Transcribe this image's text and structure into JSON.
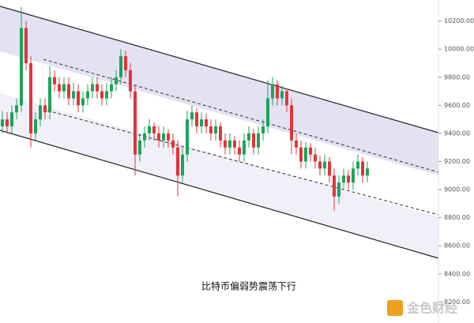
{
  "chart_data": {
    "type": "candlestick",
    "annotation": "比特币偏弱势震荡下行",
    "watermark": "金色财经",
    "up_color": "#1ea35a",
    "down_color": "#e0353b",
    "ylim": [
      8050,
      10350
    ],
    "yticks": [
      {
        "value": 10200,
        "label": "10200.00"
      },
      {
        "value": 10000,
        "label": "10000.00"
      },
      {
        "value": 9800,
        "label": "9800.00"
      },
      {
        "value": 9600,
        "label": "9600.00"
      },
      {
        "value": 9400,
        "label": "9400.00"
      },
      {
        "value": 9200,
        "label": "9200.00"
      },
      {
        "value": 9000,
        "label": "9000.00"
      },
      {
        "value": 8800,
        "label": "8800.00"
      },
      {
        "value": 8600,
        "label": "8600.00"
      },
      {
        "value": 8400,
        "label": "8400.00"
      },
      {
        "value": 8200,
        "label": "8200.00"
      }
    ],
    "open": [
      9450,
      9500,
      9450,
      9550,
      9600,
      10150,
      9900,
      9400,
      9500,
      9600,
      9550,
      9800,
      9750,
      9700,
      9750,
      9650,
      9700,
      9600,
      9650,
      9700,
      9750,
      9700,
      9650,
      9700,
      9750,
      9800,
      9950,
      9850,
      9700,
      9250,
      9350,
      9400,
      9450,
      9400,
      9350,
      9400,
      9350,
      9300,
      9100,
      9250,
      9500,
      9550,
      9450,
      9500,
      9450,
      9400,
      9450,
      9350,
      9300,
      9350,
      9300,
      9250,
      9350,
      9400,
      9300,
      9400,
      9450,
      9650,
      9750,
      9650,
      9700,
      9600,
      9350,
      9300,
      9200,
      9300,
      9250,
      9200,
      9150,
      9200,
      9100,
      8950,
      9050,
      9100,
      9050,
      9150,
      9200,
      9100
    ],
    "high": [
      9560,
      9550,
      9600,
      9650,
      10300,
      10200,
      9950,
      9550,
      9650,
      9650,
      9880,
      9850,
      9800,
      9800,
      9800,
      9760,
      9750,
      9700,
      9750,
      9800,
      9800,
      9750,
      9760,
      9800,
      9850,
      10000,
      9990,
      9900,
      9750,
      9400,
      9450,
      9500,
      9480,
      9450,
      9450,
      9430,
      9400,
      9350,
      9300,
      9560,
      9600,
      9580,
      9550,
      9540,
      9500,
      9500,
      9480,
      9400,
      9400,
      9380,
      9350,
      9400,
      9450,
      9430,
      9450,
      9500,
      9780,
      9800,
      9780,
      9740,
      9720,
      9650,
      9400,
      9350,
      9340,
      9330,
      9300,
      9240,
      9250,
      9230,
      9150,
      9100,
      9150,
      9140,
      9200,
      9250,
      9230,
      9200
    ],
    "low": [
      9400,
      9400,
      9400,
      9500,
      9550,
      9850,
      9300,
      9350,
      9450,
      9500,
      9500,
      9700,
      9650,
      9650,
      9600,
      9600,
      9550,
      9550,
      9600,
      9650,
      9650,
      9600,
      9600,
      9650,
      9700,
      9750,
      9800,
      9650,
      9100,
      9200,
      9300,
      9350,
      9350,
      9300,
      9300,
      9300,
      9250,
      8950,
      9050,
      9200,
      9450,
      9400,
      9400,
      9400,
      9350,
      9350,
      9300,
      9250,
      9250,
      9250,
      9200,
      9200,
      9300,
      9250,
      9250,
      9350,
      9400,
      9600,
      9600,
      9600,
      9550,
      9250,
      9250,
      9150,
      9150,
      9200,
      9150,
      9100,
      9100,
      9050,
      8850,
      8900,
      9000,
      9000,
      9000,
      9100,
      9050,
      9050
    ],
    "close": [
      9500,
      9450,
      9550,
      9600,
      10150,
      9900,
      9400,
      9500,
      9600,
      9550,
      9800,
      9750,
      9700,
      9750,
      9650,
      9700,
      9600,
      9650,
      9700,
      9750,
      9700,
      9650,
      9700,
      9750,
      9800,
      9950,
      9850,
      9700,
      9250,
      9350,
      9400,
      9450,
      9400,
      9350,
      9400,
      9350,
      9300,
      9100,
      9250,
      9500,
      9550,
      9450,
      9500,
      9450,
      9400,
      9450,
      9350,
      9300,
      9350,
      9300,
      9250,
      9350,
      9400,
      9300,
      9400,
      9450,
      9650,
      9750,
      9650,
      9700,
      9600,
      9350,
      9300,
      9200,
      9300,
      9250,
      9200,
      9150,
      9200,
      9100,
      8950,
      9050,
      9100,
      9050,
      9150,
      9200,
      9100,
      9150
    ]
  }
}
